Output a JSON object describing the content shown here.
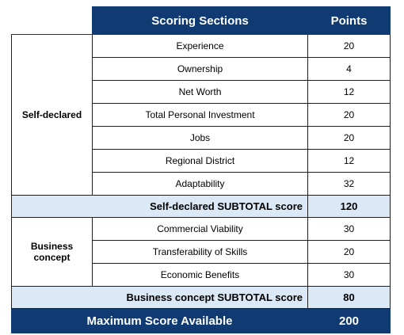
{
  "header": {
    "sections_label": "Scoring Sections",
    "points_label": "Points"
  },
  "self_declared": {
    "group_label": "Self-declared",
    "items": [
      {
        "label": "Experience",
        "points": "20"
      },
      {
        "label": "Ownership",
        "points": "4"
      },
      {
        "label": "Net Worth",
        "points": "12"
      },
      {
        "label": "Total Personal Investment",
        "points": "20"
      },
      {
        "label": "Jobs",
        "points": "20"
      },
      {
        "label": "Regional District",
        "points": "12"
      },
      {
        "label": "Adaptability",
        "points": "32"
      }
    ],
    "subtotal_label": "Self-declared SUBTOTAL score",
    "subtotal_points": "120"
  },
  "business_concept": {
    "group_label_line1": "Business",
    "group_label_line2": "concept",
    "items": [
      {
        "label": "Commercial Viability",
        "points": "30"
      },
      {
        "label": "Transferability of Skills",
        "points": "20"
      },
      {
        "label": "Economic Benefits",
        "points": "30"
      }
    ],
    "subtotal_label": "Business concept SUBTOTAL score",
    "subtotal_points": "80"
  },
  "maximum": {
    "label": "Maximum Score Available",
    "points": "200"
  },
  "colors": {
    "header_navy": "#0f3a72",
    "subtotal_light_blue": "#dbe8f6"
  }
}
